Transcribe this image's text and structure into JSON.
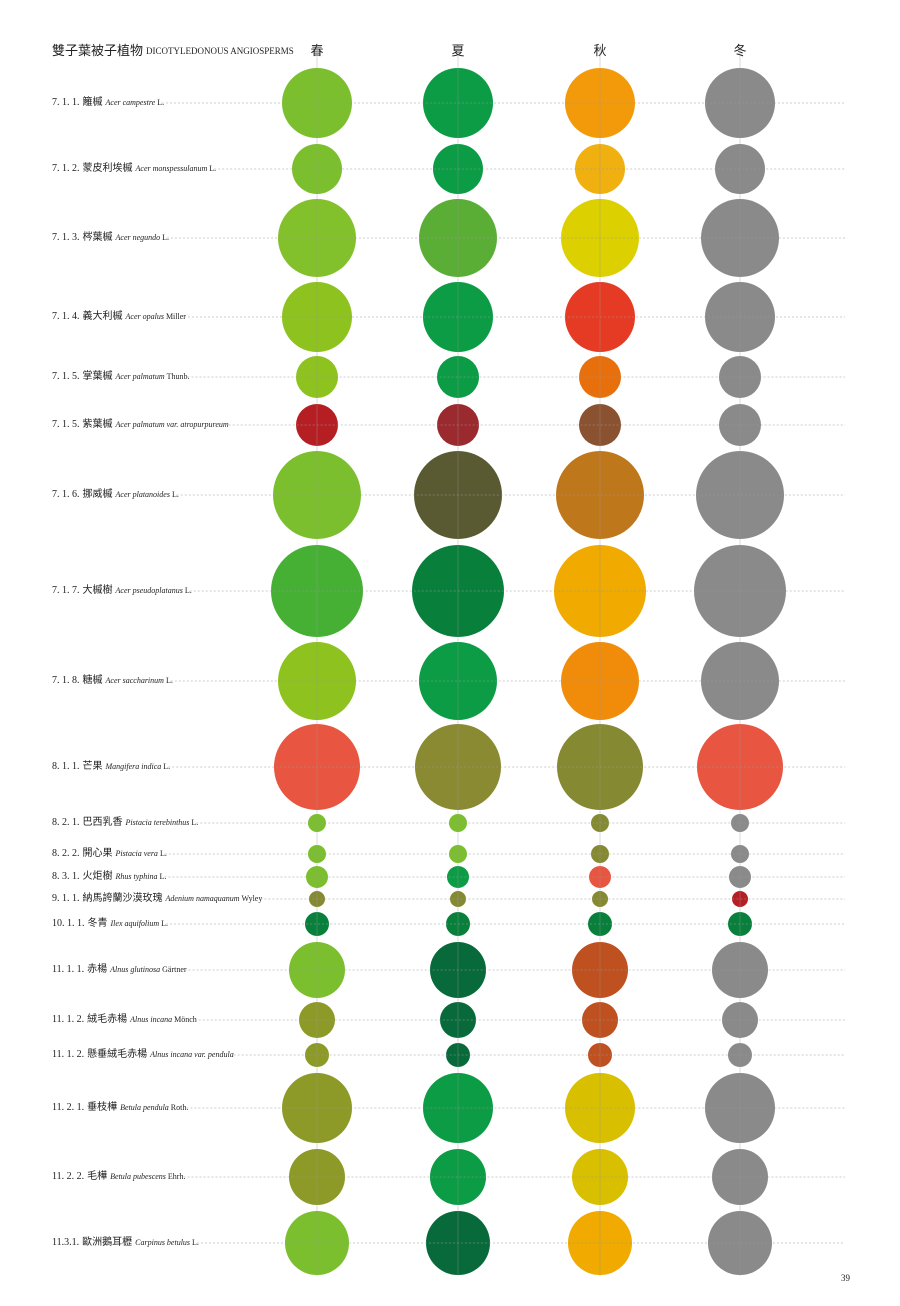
{
  "header": {
    "title_zh": "雙子葉被子植物",
    "title_en": "DICOTYLEDONOUS ANGIOSPERMS",
    "seasons": [
      "春",
      "夏",
      "秋",
      "冬"
    ]
  },
  "rows": [
    {
      "code": "7. 1. 1.",
      "name": "籬槭",
      "latin": "Acer campestre",
      "author": "L.",
      "colors": [
        "#7bbf2e",
        "#0b9c45",
        "#f39a0a",
        "#8a8a8a"
      ]
    },
    {
      "code": "7. 1. 2.",
      "name": "蒙皮利埃槭",
      "latin": "Acer monspessulanum",
      "author": "L.",
      "colors": [
        "#7bbf2e",
        "#0b9c45",
        "#f0b010",
        "#8a8a8a"
      ]
    },
    {
      "code": "7. 1. 3.",
      "name": "梣葉槭",
      "latin": "Acer negundo",
      "author": "L.",
      "colors": [
        "#82c12b",
        "#5aad35",
        "#dcd000",
        "#8a8a8a"
      ]
    },
    {
      "code": "7. 1. 4.",
      "name": "義大利槭",
      "latin": "Acer opalus",
      "author": "Miller",
      "colors": [
        "#8dc21f",
        "#0b9c45",
        "#e53b24",
        "#8a8a8a"
      ]
    },
    {
      "code": "7. 1. 5.",
      "name": "掌葉槭",
      "latin": "Acer palmatum",
      "author": "Thunb.",
      "colors": [
        "#8dc21f",
        "#0b9c45",
        "#e8700c",
        "#8a8a8a"
      ]
    },
    {
      "code": "7. 1. 5.",
      "name": "紫葉槭",
      "latin": "Acer palmatum var. atropurpureum",
      "colors": [
        "#b51f24",
        "#9a2a2e",
        "#8a5230",
        "#8a8a8a"
      ]
    },
    {
      "code": "7. 1. 6.",
      "name": "挪威槭",
      "latin": "Acer platanoides",
      "author": "L.",
      "colors": [
        "#7bbf2e",
        "#5a5a32",
        "#bf771c",
        "#8a8a8a"
      ]
    },
    {
      "code": "7. 1. 7.",
      "name": "大槭樹",
      "latin": "Acer pseudoplatanus",
      "author": "L.",
      "colors": [
        "#46b035",
        "#08803c",
        "#f0aa00",
        "#8a8a8a"
      ]
    },
    {
      "code": "7. 1. 8.",
      "name": "糖槭",
      "latin": "Acer saccharinum",
      "author": "L.",
      "colors": [
        "#8dc21f",
        "#0b9c45",
        "#f08c0a",
        "#8a8a8a"
      ]
    },
    {
      "code": "8. 1. 1.",
      "name": "芒果",
      "latin": "Mangifera indica",
      "author": "L.",
      "colors": [
        "#e85540",
        "#8a8a32",
        "#858a32",
        "#e85540"
      ]
    },
    {
      "code": "8. 2. 1.",
      "name": "巴西乳香",
      "latin": "Pistacia terebinthus",
      "author": "L.",
      "colors": [
        "#7bbf2e",
        "#7bbf2e",
        "#858a32",
        "#8a8a8a"
      ]
    },
    {
      "code": "8. 2. 2.",
      "name": "開心果",
      "latin": "Pistacia vera",
      "author": "L.",
      "colors": [
        "#7bbf2e",
        "#7bbf2e",
        "#858a32",
        "#8a8a8a"
      ]
    },
    {
      "code": "8. 3. 1.",
      "name": "火炬樹",
      "latin": "Rhus typhina",
      "author": "L.",
      "colors": [
        "#7bbf2e",
        "#0b9c45",
        "#e85540",
        "#8a8a8a"
      ]
    },
    {
      "code": "9. 1. 1.",
      "name": "納馬誇蘭沙漠玫瑰",
      "latin": "Adenium namaquanum",
      "author": "Wyley",
      "colors": [
        "#858a32",
        "#858a32",
        "#858a32",
        "#b51f24"
      ]
    },
    {
      "code": "10. 1. 1.",
      "name": "冬青",
      "latin": "Ilex aquifolium",
      "author": "L.",
      "colors": [
        "#08803c",
        "#08803c",
        "#08803c",
        "#08803c"
      ]
    },
    {
      "code": "11. 1. 1.",
      "name": "赤楊",
      "latin": "Alnus glutinosa",
      "author": "Gärtner",
      "colors": [
        "#7bbf2e",
        "#086a3a",
        "#bf5020",
        "#8a8a8a"
      ]
    },
    {
      "code": "11. 1. 2.",
      "name": "絨毛赤楊",
      "latin": "Alnus incana",
      "author": "Mönch",
      "colors": [
        "#8d9a28",
        "#086a3a",
        "#bf5020",
        "#8a8a8a"
      ]
    },
    {
      "code": "11. 1. 2.",
      "name": "懸垂絨毛赤楊",
      "latin": "Alnus incana var. pendula",
      "colors": [
        "#8d9a28",
        "#086a3a",
        "#bf5020",
        "#8a8a8a"
      ]
    },
    {
      "code": "11. 2. 1.",
      "name": "垂枝樺",
      "latin": "Betula pendula",
      "author": "Roth.",
      "colors": [
        "#8d9a28",
        "#0b9c45",
        "#d8c000",
        "#8a8a8a"
      ]
    },
    {
      "code": "11. 2. 2.",
      "name": "毛樺",
      "latin": "Betula pubescens",
      "author": "Ehrh.",
      "colors": [
        "#8d9a28",
        "#0b9c45",
        "#d8c000",
        "#8a8a8a"
      ]
    },
    {
      "code": "11.3.1.",
      "name": "歐洲鵝耳櫪",
      "latin": "Carpinus betulus",
      "author": "L.",
      "colors": [
        "#7bbf2e",
        "#086a3a",
        "#f0aa00",
        "#8a8a8a"
      ]
    }
  ],
  "footer": {
    "page": "39"
  }
}
